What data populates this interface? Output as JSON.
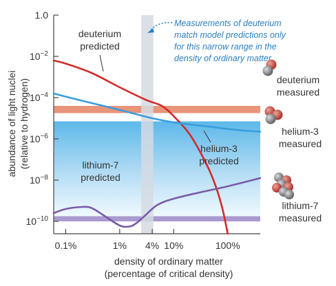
{
  "chart_data": {
    "type": "line",
    "xlabel": [
      "density of ordinary matter",
      "(percentage of critical density)"
    ],
    "ylabel": [
      "abundance of light nuclei",
      "(relative to hydrogen)"
    ],
    "x_scale": "log",
    "y_scale": "log",
    "xlim": [
      0.06,
      400
    ],
    "ylim_exponent": [
      -10.6,
      0
    ],
    "x_ticks": [
      {
        "value": 0.1,
        "label": "0.1%"
      },
      {
        "value": 1,
        "label": "1%"
      },
      {
        "value": 4,
        "label": "4%"
      },
      {
        "value": 10,
        "label": "10%"
      },
      {
        "value": 100,
        "label": "100%"
      }
    ],
    "y_ticks": [
      {
        "exp": 0,
        "label": "1.0"
      },
      {
        "exp": -2,
        "base": "10",
        "sup": "−2"
      },
      {
        "exp": -4,
        "base": "10",
        "sup": "−4"
      },
      {
        "exp": -6,
        "base": "10",
        "sup": "−6"
      },
      {
        "exp": -8,
        "base": "10",
        "sup": "−8"
      },
      {
        "exp": -10,
        "base": "10",
        "sup": "−10"
      }
    ],
    "series": [
      {
        "key": "deuterium",
        "color": "#d12c2a",
        "x": [
          0.06,
          0.1,
          0.3,
          1,
          3,
          6,
          10,
          20,
          40,
          60,
          80,
          100
        ],
        "y_exp": [
          -2.2,
          -2.35,
          -2.8,
          -3.5,
          -4.1,
          -4.4,
          -4.9,
          -5.8,
          -7.2,
          -8.3,
          -9.4,
          -10.6
        ]
      },
      {
        "key": "helium3",
        "color": "#3a9ddc",
        "x": [
          0.06,
          0.1,
          0.2,
          0.5,
          1,
          2,
          4,
          10,
          20,
          50,
          100,
          200,
          400
        ],
        "y_exp": [
          -3.8,
          -3.95,
          -4.15,
          -4.4,
          -4.6,
          -4.8,
          -5,
          -5.2,
          -5.3,
          -5.42,
          -5.52,
          -5.6,
          -5.65
        ]
      },
      {
        "key": "lithium7",
        "color": "#7a5aa8",
        "x": [
          0.06,
          0.1,
          0.2,
          0.3,
          0.5,
          1,
          1.5,
          2,
          3,
          5,
          10,
          30,
          100,
          400
        ],
        "y_exp": [
          -9.6,
          -9.4,
          -9.3,
          -9.35,
          -9.7,
          -10.2,
          -10.25,
          -10.1,
          -9.7,
          -9.2,
          -8.9,
          -8.6,
          -8.3,
          -7.9
        ]
      }
    ],
    "measured_bands": [
      {
        "key": "deuterium",
        "color": "#e8957a",
        "y_exp": [
          -4.75,
          -4.4
        ]
      },
      {
        "key": "helium3",
        "color": "#bfe2f6",
        "y_exp": [
          -9.9,
          -5.15
        ]
      },
      {
        "key": "lithium7",
        "color": "#a99ad0",
        "y_exp": [
          -10,
          -9.75
        ]
      }
    ],
    "agreement_range": {
      "color": "#d5dbe3",
      "x": [
        2.5,
        4.2
      ]
    },
    "curve_labels": {
      "deuterium_predicted": [
        "deuterium",
        "predicted"
      ],
      "helium3_predicted": [
        "helium-3",
        "predicted"
      ],
      "lithium7_predicted": [
        "lithium-7",
        "predicted"
      ]
    },
    "measured_labels": {
      "deuterium": [
        "deuterium",
        "measured"
      ],
      "helium3": [
        "helium-3",
        "measured"
      ],
      "lithium7": [
        "lithium-7",
        "measured"
      ]
    },
    "annotation": [
      "Measurements of deuterium",
      "match model predictions only",
      "for this narrow range in the",
      "density of ordinary matter."
    ]
  }
}
